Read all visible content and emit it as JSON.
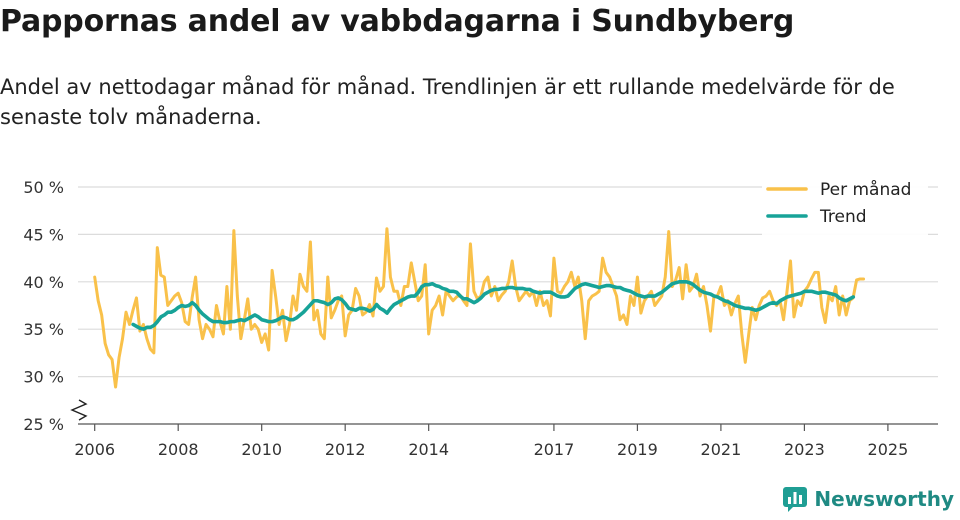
{
  "title": "Pappornas andel av vabbdagarna i Sundbyberg",
  "subtitle": "Andel av nettodagar månad för månad. Trendlinjen är ett rullande medelvärde för de senaste tolv månaderna.",
  "brand": {
    "name": "Newsworthy",
    "color": "#1f9e94"
  },
  "chart_data": {
    "type": "line",
    "title": "Pappornas andel av vabbdagarna i Sundbyberg",
    "xlabel": "",
    "ylabel": "",
    "ylim": [
      25,
      50
    ],
    "xlim": [
      2005.6,
      2026.2
    ],
    "yticks": [
      25,
      30,
      35,
      40,
      45,
      50
    ],
    "ytick_labels": [
      "25 %",
      "30 %",
      "35 %",
      "40 %",
      "45 %",
      "50 %"
    ],
    "xticks": [
      2006,
      2008,
      2010,
      2012,
      2014,
      2017,
      2019,
      2021,
      2023,
      2025
    ],
    "xtick_labels": [
      "2006",
      "2008",
      "2010",
      "2012",
      "2014",
      "2017",
      "2019",
      "2021",
      "2023",
      "2025"
    ],
    "axis_break": true,
    "grid": true,
    "legend_position": "top-right",
    "series": [
      {
        "name": "Per månad",
        "color": "#f9c14a",
        "x_start": 2006.0,
        "step_months": 1,
        "values": [
          40.5,
          38.0,
          36.5,
          33.5,
          32.3,
          31.8,
          28.9,
          32.0,
          34.0,
          36.8,
          35.5,
          37.0,
          38.3,
          34.8,
          35.5,
          34.0,
          32.9,
          32.5,
          43.6,
          40.7,
          40.5,
          37.5,
          38.0,
          38.5,
          38.8,
          37.8,
          35.8,
          35.5,
          38.3,
          40.5,
          36.0,
          34.0,
          35.5,
          35.0,
          34.2,
          37.5,
          35.8,
          34.5,
          39.5,
          35.0,
          45.4,
          38.5,
          34.0,
          36.0,
          38.2,
          35.0,
          35.5,
          35.0,
          33.6,
          34.5,
          32.8,
          41.2,
          38.5,
          35.5,
          37.0,
          33.8,
          35.5,
          38.5,
          37.0,
          40.8,
          39.5,
          39.0,
          44.2,
          36.0,
          37.0,
          34.5,
          34.0,
          40.5,
          36.2,
          37.0,
          38.0,
          38.5,
          34.3,
          36.5,
          37.0,
          39.3,
          38.5,
          36.5,
          36.8,
          37.6,
          36.4,
          40.4,
          39.0,
          39.5,
          45.6,
          40.5,
          39.0,
          39.0,
          37.5,
          39.5,
          39.5,
          42.0,
          40.0,
          38.0,
          38.5,
          41.8,
          34.5,
          37.0,
          37.5,
          38.5,
          36.5,
          39.0,
          38.5,
          38.0,
          38.4,
          38.6,
          38.0,
          37.5,
          44.0,
          39.0,
          38.2,
          38.5,
          40.0,
          40.5,
          38.5,
          39.5,
          38.0,
          38.6,
          39.0,
          40.0,
          42.2,
          39.5,
          38.0,
          38.5,
          39.0,
          38.5,
          39.0,
          37.5,
          39.0,
          37.5,
          38.0,
          36.4,
          42.5,
          39.0,
          38.8,
          39.5,
          40.0,
          41.0,
          39.5,
          40.5,
          38.0,
          34.0,
          38.0,
          38.5,
          38.7,
          39.0,
          42.5,
          41.0,
          40.5,
          39.5,
          38.5,
          36.0,
          36.5,
          35.5,
          38.5,
          37.5,
          40.5,
          36.7,
          38.0,
          38.5,
          39.0,
          37.5,
          38.0,
          38.5,
          40.5,
          45.3,
          39.5,
          40.2,
          41.5,
          38.2,
          41.8,
          39.0,
          39.5,
          40.8,
          38.5,
          39.5,
          37.5,
          34.8,
          38.5,
          38.5,
          39.5,
          37.5,
          38.0,
          36.5,
          37.7,
          38.5,
          34.5,
          31.5,
          34.5,
          37.3,
          36.0,
          37.5,
          38.3,
          38.5,
          39.0,
          38.0,
          37.5,
          38.0,
          36.0,
          39.0,
          42.2,
          36.3,
          38.0,
          37.5,
          39.0,
          39.5,
          40.3,
          41.0,
          41.0,
          37.3,
          35.7,
          38.5,
          38.0,
          39.5,
          36.5,
          38.5,
          36.5,
          38.0,
          38.3,
          40.2,
          40.3,
          40.3
        ]
      },
      {
        "name": "Trend",
        "color": "#17a398",
        "x_start": 2006.92,
        "step_months": 1,
        "values": [
          35.5,
          35.3,
          35.1,
          35.0,
          35.2,
          35.2,
          35.4,
          35.8,
          36.3,
          36.5,
          36.8,
          36.8,
          37.0,
          37.3,
          37.5,
          37.4,
          37.5,
          37.8,
          37.5,
          37.0,
          36.6,
          36.3,
          36.0,
          35.8,
          35.8,
          35.8,
          35.7,
          35.7,
          35.8,
          35.8,
          35.9,
          36.0,
          35.9,
          36.1,
          36.3,
          36.5,
          36.3,
          36.0,
          35.9,
          35.8,
          35.8,
          35.9,
          36.1,
          36.3,
          36.2,
          36.0,
          36.0,
          36.2,
          36.5,
          36.8,
          37.2,
          37.6,
          38.0,
          38.0,
          37.9,
          37.8,
          37.6,
          37.8,
          38.2,
          38.3,
          38.1,
          37.7,
          37.2,
          37.1,
          37.0,
          37.2,
          37.2,
          37.1,
          36.9,
          37.1,
          37.6,
          37.2,
          37.0,
          36.7,
          37.2,
          37.6,
          37.8,
          38.0,
          38.2,
          38.4,
          38.5,
          38.5,
          38.9,
          39.5,
          39.7,
          39.7,
          39.8,
          39.6,
          39.5,
          39.3,
          39.2,
          39.0,
          39.0,
          38.9,
          38.5,
          38.2,
          38.2,
          38.0,
          37.8,
          38.0,
          38.3,
          38.7,
          38.9,
          39.1,
          39.2,
          39.2,
          39.3,
          39.3,
          39.4,
          39.4,
          39.3,
          39.3,
          39.3,
          39.2,
          39.2,
          39.0,
          38.9,
          38.8,
          38.9,
          38.9,
          38.9,
          38.7,
          38.5,
          38.4,
          38.4,
          38.5,
          38.9,
          39.3,
          39.5,
          39.7,
          39.8,
          39.7,
          39.6,
          39.5,
          39.4,
          39.5,
          39.6,
          39.6,
          39.5,
          39.4,
          39.4,
          39.2,
          39.1,
          39.0,
          38.8,
          38.6,
          38.5,
          38.4,
          38.5,
          38.5,
          38.5,
          38.7,
          38.9,
          39.2,
          39.5,
          39.8,
          39.9,
          40.0,
          40.0,
          40.0,
          39.9,
          39.7,
          39.4,
          39.1,
          38.9,
          38.8,
          38.7,
          38.5,
          38.4,
          38.2,
          38.0,
          37.9,
          37.7,
          37.5,
          37.4,
          37.3,
          37.2,
          37.2,
          37.1,
          37.0,
          37.1,
          37.3,
          37.5,
          37.7,
          37.8,
          37.7,
          38.0,
          38.2,
          38.4,
          38.5,
          38.6,
          38.7,
          38.8,
          39.0,
          39.0,
          39.0,
          38.9,
          38.8,
          38.9,
          38.9,
          38.8,
          38.7,
          38.6,
          38.3,
          38.1,
          38.0,
          38.2,
          38.4
        ]
      }
    ]
  }
}
